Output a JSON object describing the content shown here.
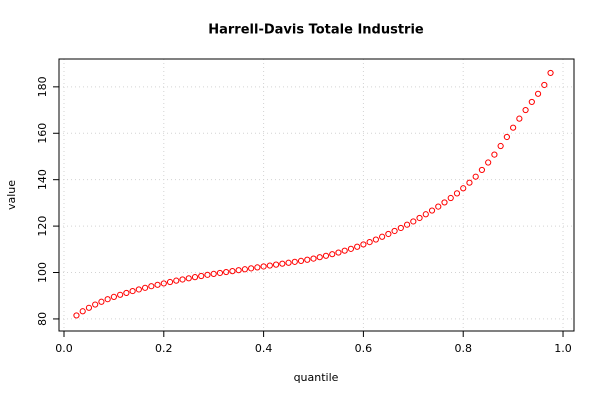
{
  "chart_data": {
    "type": "scatter",
    "title": "Harrell-Davis Totale Industrie",
    "x_label": "quantile",
    "y_label": "value",
    "x": [
      0.025,
      0.0375,
      0.05,
      0.0625,
      0.075,
      0.0875,
      0.1,
      0.1125,
      0.125,
      0.1375,
      0.15,
      0.1625,
      0.175,
      0.1875,
      0.2,
      0.2125,
      0.225,
      0.2375,
      0.25,
      0.2625,
      0.275,
      0.2875,
      0.3,
      0.3125,
      0.325,
      0.3375,
      0.35,
      0.3625,
      0.375,
      0.3875,
      0.4,
      0.4125,
      0.425,
      0.4375,
      0.45,
      0.4625,
      0.475,
      0.4875,
      0.5,
      0.5125,
      0.525,
      0.5375,
      0.55,
      0.5625,
      0.575,
      0.5875,
      0.6,
      0.6125,
      0.625,
      0.6375,
      0.65,
      0.6625,
      0.675,
      0.6875,
      0.7,
      0.7125,
      0.725,
      0.7375,
      0.75,
      0.7625,
      0.775,
      0.7875,
      0.8,
      0.8125,
      0.825,
      0.8375,
      0.85,
      0.8625,
      0.875,
      0.8875,
      0.9,
      0.9125,
      0.925,
      0.9375,
      0.95,
      0.9625,
      0.975
    ],
    "values": [
      81.5,
      83.3,
      84.8,
      86.2,
      87.4,
      88.5,
      89.5,
      90.4,
      91.2,
      92.0,
      92.7,
      93.4,
      94.1,
      94.7,
      95.3,
      95.9,
      96.5,
      97.0,
      97.5,
      98.0,
      98.5,
      99.0,
      99.4,
      99.8,
      100.2,
      100.6,
      101.0,
      101.4,
      101.8,
      102.2,
      102.6,
      103.0,
      103.4,
      103.8,
      104.2,
      104.6,
      105.0,
      105.5,
      106.0,
      106.6,
      107.2,
      107.9,
      108.6,
      109.4,
      110.2,
      111.1,
      112.1,
      113.1,
      114.2,
      115.4,
      116.6,
      117.9,
      119.2,
      120.6,
      122.0,
      123.5,
      125.1,
      126.7,
      128.4,
      130.2,
      132.1,
      134.1,
      136.3,
      138.7,
      141.3,
      144.2,
      147.4,
      150.8,
      154.5,
      158.4,
      162.4,
      166.3,
      170.0,
      173.5,
      177.0,
      180.8,
      186.0
    ],
    "color": "#ff0000",
    "xlim": [
      -0.01,
      1.022
    ],
    "ylim": [
      74.8,
      192
    ],
    "xticks": [
      {
        "value": 0,
        "label": "0.0"
      },
      0.2,
      0.4,
      0.6,
      0.8,
      {
        "value": 1,
        "label": "1.0"
      }
    ],
    "yticks": [
      80,
      100,
      120,
      140,
      160,
      180
    ],
    "grid": true
  }
}
